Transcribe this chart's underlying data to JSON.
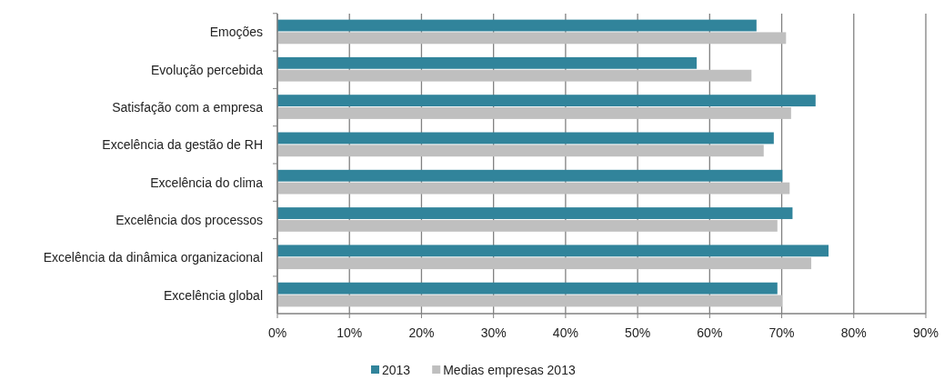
{
  "chart_data": {
    "type": "bar",
    "orientation": "horizontal",
    "categories": [
      "Emoções",
      "Evolução percebida",
      "Satisfação com a empresa",
      "Excelência da gestão de RH",
      "Excelência do clima",
      "Excelência dos processos",
      "Excelência da dinâmica organizacional",
      "Excelência global"
    ],
    "series": [
      {
        "name": "2013",
        "color": "#31849b",
        "values": [
          66.5,
          58.2,
          74.7,
          68.9,
          70.1,
          71.5,
          76.5,
          69.4
        ]
      },
      {
        "name": "Medias empresas 2013",
        "color": "#bfbfbf",
        "values": [
          70.6,
          65.8,
          71.3,
          67.5,
          71.1,
          69.4,
          74.1,
          70.1
        ]
      }
    ],
    "xlim": [
      0,
      90
    ],
    "xticks": [
      {
        "value": 0,
        "label": "0%"
      },
      {
        "value": 10,
        "label": "10%"
      },
      {
        "value": 20,
        "label": "20%"
      },
      {
        "value": 30,
        "label": "30%"
      },
      {
        "value": 40,
        "label": "40%"
      },
      {
        "value": 50,
        "label": "50%"
      },
      {
        "value": 60,
        "label": "60%"
      },
      {
        "value": 70,
        "label": "70%"
      },
      {
        "value": 80,
        "label": "80%"
      },
      {
        "value": 90,
        "label": "90%"
      }
    ],
    "grid": "x",
    "legend": "bottom"
  }
}
